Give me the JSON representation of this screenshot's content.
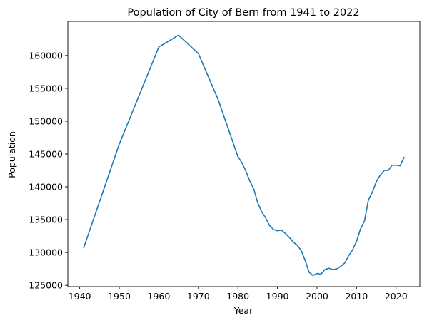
{
  "chart_data": {
    "type": "line",
    "title": "Population of City of Bern from 1941 to 2022",
    "xlabel": "Year",
    "ylabel": "Population",
    "xlim": [
      1937,
      2026
    ],
    "ylim": [
      124800,
      165200
    ],
    "xticks": [
      1940,
      1950,
      1960,
      1970,
      1980,
      1990,
      2000,
      2010,
      2020
    ],
    "yticks": [
      125000,
      130000,
      135000,
      140000,
      145000,
      150000,
      155000,
      160000
    ],
    "grid": false,
    "colors": {
      "line": "#1f77b4",
      "axis": "#000000",
      "background": "#ffffff"
    },
    "series": [
      {
        "x": [
          1941,
          1950,
          1960,
          1965,
          1970,
          1975,
          1980,
          1981,
          1982,
          1983,
          1984,
          1985,
          1986,
          1987,
          1988,
          1989,
          1990,
          1991,
          1992,
          1993,
          1994,
          1995,
          1996,
          1997,
          1998,
          1999,
          2000,
          2001,
          2002,
          2003,
          2004,
          2005,
          2006,
          2007,
          2008,
          2009,
          2010,
          2011,
          2012,
          2013,
          2014,
          2015,
          2016,
          2017,
          2018,
          2019,
          2020,
          2021,
          2022
        ],
        "values": [
          130700,
          146500,
          161300,
          163100,
          160300,
          153300,
          144600,
          143700,
          142400,
          140900,
          139700,
          137600,
          136200,
          135300,
          134100,
          133500,
          133300,
          133400,
          132900,
          132300,
          131600,
          131100,
          130300,
          128800,
          127000,
          126500,
          126800,
          126700,
          127400,
          127600,
          127400,
          127500,
          127900,
          128400,
          129500,
          130400,
          131700,
          133600,
          134800,
          138000,
          139200,
          140800,
          141800,
          142500,
          142500,
          143300,
          143300,
          143200,
          144500
        ]
      }
    ]
  }
}
